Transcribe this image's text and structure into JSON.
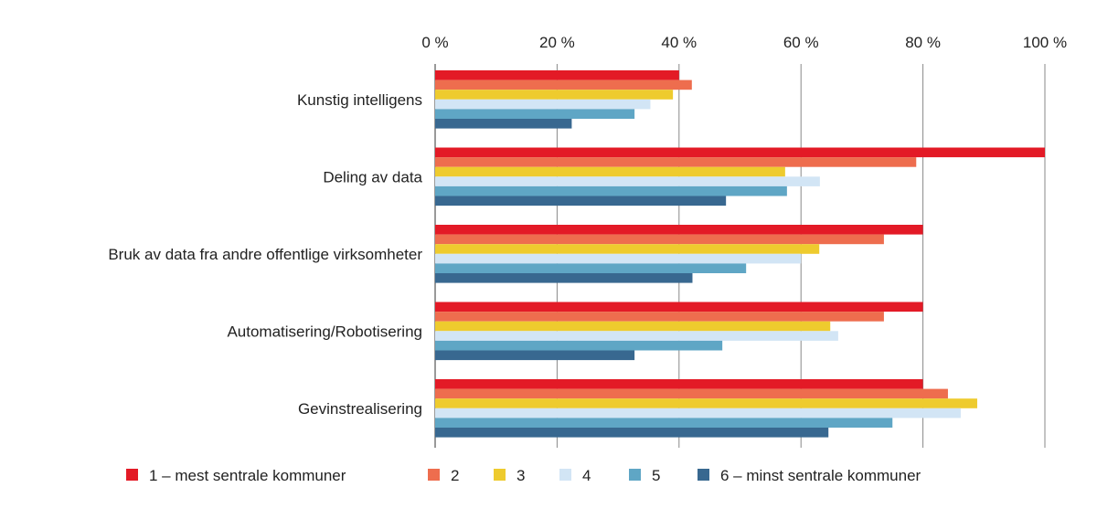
{
  "chart_data": {
    "type": "bar",
    "orientation": "horizontal",
    "title": "",
    "xlabel": "",
    "ylabel": "",
    "xlim": [
      0,
      100
    ],
    "x_ticks": [
      "0 %",
      "20 %",
      "40 %",
      "60 %",
      "80 %",
      "100 %"
    ],
    "x_tick_values": [
      0,
      20,
      40,
      60,
      80,
      100
    ],
    "x_axis_position": "top",
    "grid": true,
    "legend_placement": "bottom",
    "categories": [
      "Kunstig intelligens",
      "Deling av data",
      "Bruk av data fra andre offentlige virksomheter",
      "Automatisering/Robotisering",
      "Gevinstrealisering"
    ],
    "series": [
      {
        "name": "1 – mest sentrale kommuner",
        "color": "#e31a26",
        "values": [
          40.0,
          100.0,
          80.0,
          80.0,
          80.0
        ]
      },
      {
        "name": "2",
        "color": "#ee6d4e",
        "values": [
          42.1,
          78.9,
          73.6,
          73.6,
          84.1
        ]
      },
      {
        "name": "3",
        "color": "#eecb2e",
        "values": [
          39.0,
          57.4,
          63.0,
          64.8,
          88.9
        ]
      },
      {
        "name": "4",
        "color": "#d2e5f5",
        "values": [
          35.3,
          63.1,
          60.0,
          66.1,
          86.2
        ]
      },
      {
        "name": "5",
        "color": "#5fa6c5",
        "values": [
          32.7,
          57.7,
          51.0,
          47.1,
          75.0
        ]
      },
      {
        "name": "6 – minst sentrale kommuner",
        "color": "#386890",
        "values": [
          22.4,
          47.7,
          42.2,
          32.7,
          64.5
        ]
      }
    ]
  }
}
